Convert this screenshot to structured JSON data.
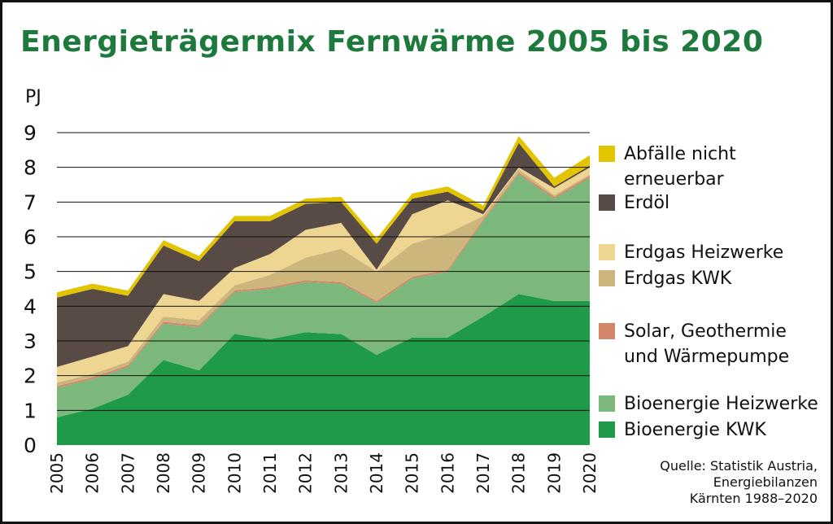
{
  "title": "Energieträgermix Fernwärme 2005 bis 2020",
  "title_color": "#1e7a3c",
  "source_lines": [
    "Quelle: Statistik Austria,",
    "Energiebilanzen",
    "Kärnten 1988–2020"
  ],
  "chart_data": {
    "type": "area",
    "stacked": true,
    "unit": "PJ",
    "ylim": [
      0,
      9
    ],
    "yticks": [
      0,
      1,
      2,
      3,
      4,
      5,
      6,
      7,
      8,
      9
    ],
    "grid": true,
    "legend_position": "right",
    "x": [
      "2005",
      "2006",
      "2007",
      "2008",
      "2009",
      "2010",
      "2011",
      "2012",
      "2013",
      "2014",
      "2015",
      "2016",
      "2017",
      "2018",
      "2019",
      "2020"
    ],
    "series": [
      {
        "name": "Bioenergie KWK",
        "color": "#1f9a48",
        "values": [
          0.8,
          1.05,
          1.45,
          2.45,
          2.15,
          3.2,
          3.05,
          3.25,
          3.2,
          2.6,
          3.1,
          3.1,
          3.7,
          4.35,
          4.15,
          4.15
        ]
      },
      {
        "name": "Bioenergie Heizwerke",
        "color": "#7cb87b",
        "values": [
          0.85,
          0.85,
          0.8,
          1.05,
          1.25,
          1.2,
          1.45,
          1.45,
          1.45,
          1.5,
          1.7,
          1.9,
          2.75,
          3.45,
          2.95,
          3.55
        ]
      },
      {
        "name": "Solar, Geothermie und Wärmepumpe",
        "color": "#d4866a",
        "values": [
          0.05,
          0.05,
          0.05,
          0.05,
          0.05,
          0.05,
          0.05,
          0.05,
          0.05,
          0.05,
          0.05,
          0.05,
          0.05,
          0.05,
          0.05,
          0.05
        ]
      },
      {
        "name": "Erdgas KWK",
        "color": "#cdb67c",
        "values": [
          0.1,
          0.1,
          0.1,
          0.15,
          0.15,
          0.15,
          0.35,
          0.65,
          0.95,
          0.85,
          0.95,
          1.05,
          0.1,
          0.1,
          0.05,
          0.05
        ]
      },
      {
        "name": "Erdgas Heizwerke",
        "color": "#efd592",
        "values": [
          0.45,
          0.5,
          0.45,
          0.65,
          0.55,
          0.5,
          0.6,
          0.8,
          0.75,
          0.05,
          0.85,
          0.95,
          0.05,
          0.05,
          0.2,
          0.2
        ]
      },
      {
        "name": "Erdöl",
        "color": "#584a45",
        "values": [
          2.0,
          1.95,
          1.45,
          1.4,
          1.15,
          1.35,
          0.95,
          0.75,
          0.6,
          0.75,
          0.45,
          0.25,
          0.1,
          0.7,
          0.05,
          0.05
        ]
      },
      {
        "name": "Abfälle nicht erneuerbar",
        "color": "#e2c500",
        "values": [
          0.15,
          0.15,
          0.15,
          0.15,
          0.15,
          0.15,
          0.15,
          0.15,
          0.15,
          0.15,
          0.15,
          0.15,
          0.15,
          0.2,
          0.25,
          0.3
        ]
      }
    ],
    "legend": [
      {
        "series": 6,
        "lines": [
          "Abfälle nicht",
          "erneuerbar"
        ]
      },
      {
        "series": 5,
        "lines": [
          "Erdöl"
        ]
      },
      {
        "series": 4,
        "lines": [
          "Erdgas Heizwerke"
        ]
      },
      {
        "series": 3,
        "lines": [
          "Erdgas KWK"
        ]
      },
      {
        "series": 2,
        "lines": [
          "Solar, Geothermie",
          "und Wärmepumpe"
        ]
      },
      {
        "series": 1,
        "lines": [
          "Bioenergie Heizwerke"
        ]
      },
      {
        "series": 0,
        "lines": [
          "Bioenergie KWK"
        ]
      }
    ]
  }
}
